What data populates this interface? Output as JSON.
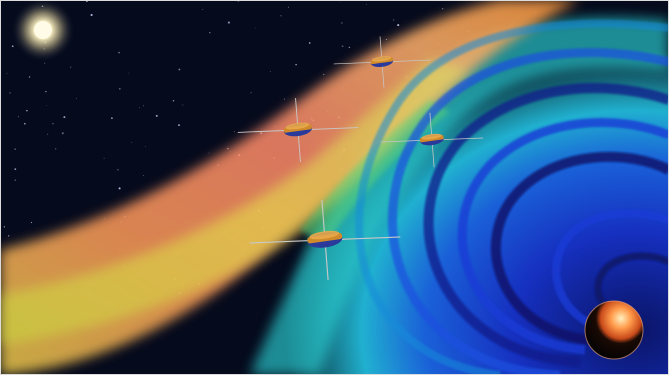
{
  "image": {
    "subject": "space-plasma-artwork",
    "elements": [
      "sun",
      "stars",
      "solar-wind-band",
      "magnetosphere-field-lines",
      "spacecraft",
      "planet-earth"
    ],
    "colors": {
      "space": "#050a1c",
      "sun": "#fff6c8",
      "solar_wind_warm": "#ff9a5a",
      "solar_wind_yellow": "#e8e84a",
      "boundary_cyan": "#2bd2d6",
      "field_blue": "#1a3bd6",
      "field_deep": "#0a1466",
      "earth_day": "#ff7a3a",
      "earth_night": "#1a0a05",
      "spacecraft_body": "#d08a2a",
      "spacecraft_panel": "#2a3a9a"
    },
    "spacecraft_count": 4
  }
}
